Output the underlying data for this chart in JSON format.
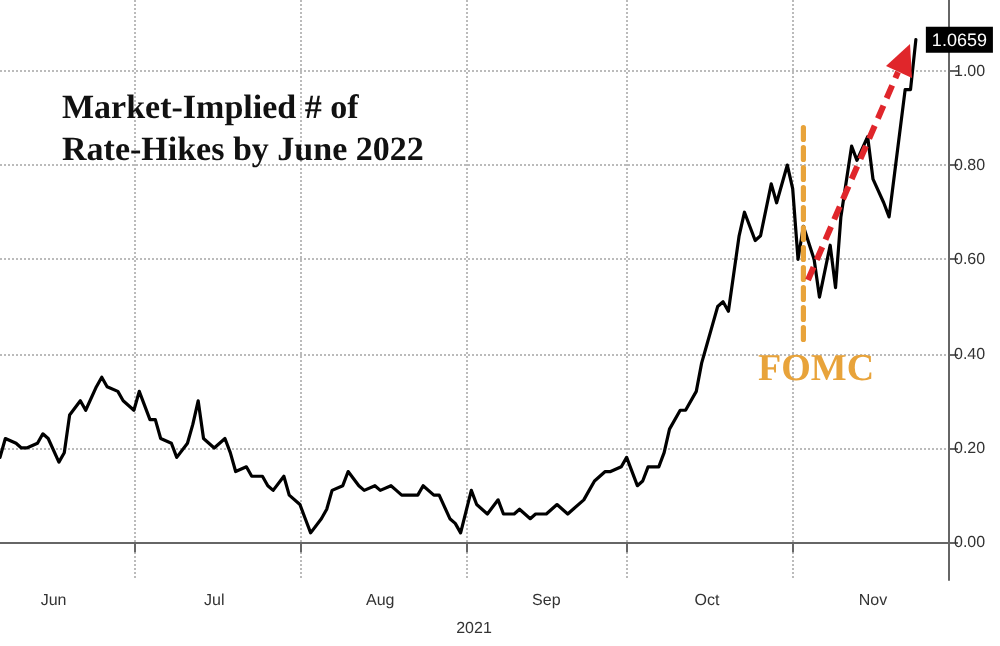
{
  "chart_data": {
    "type": "line",
    "title": "Market-Implied # of Rate-Hikes by June 2022",
    "xlabel": "2021",
    "annotations": [
      "FOMC"
    ],
    "xlim": [
      "2021-06-06",
      "2021-11-30"
    ],
    "xticks": [
      {
        "value": "2021-06-16",
        "label": "Jun"
      },
      {
        "value": "2021-07-01",
        "label": null
      },
      {
        "value": "2021-07-16",
        "label": "Jul"
      },
      {
        "value": "2021-08-01",
        "label": null
      },
      {
        "value": "2021-08-16",
        "label": "Aug"
      },
      {
        "value": "2021-09-01",
        "label": null
      },
      {
        "value": "2021-09-16",
        "label": "Sep"
      },
      {
        "value": "2021-10-01",
        "label": null
      },
      {
        "value": "2021-10-16",
        "label": "Oct"
      },
      {
        "value": "2021-11-01",
        "label": null
      },
      {
        "value": "2021-11-16",
        "label": "Nov"
      }
    ],
    "ylim": [
      -0.08,
      1.15
    ],
    "yticks": [
      {
        "value": 0,
        "label": "0.00"
      },
      {
        "value": 0.2,
        "label": "0.20"
      },
      {
        "value": 0.4,
        "label": "0.40"
      },
      {
        "value": 0.6,
        "label": "0.60"
      },
      {
        "value": 0.8,
        "label": "0.80"
      },
      {
        "value": 1,
        "label": "1.00"
      }
    ],
    "grid": true,
    "series": [
      {
        "color": "#000000",
        "x": [
          "2021-06-06",
          "2021-06-07",
          "2021-06-09",
          "2021-06-10",
          "2021-06-11",
          "2021-06-13",
          "2021-06-14",
          "2021-06-15",
          "2021-06-17",
          "2021-06-18",
          "2021-06-19",
          "2021-06-21",
          "2021-06-22",
          "2021-06-24",
          "2021-06-25",
          "2021-06-26",
          "2021-06-28",
          "2021-06-29",
          "2021-07-01",
          "2021-07-02",
          "2021-07-04",
          "2021-07-05",
          "2021-07-06",
          "2021-07-08",
          "2021-07-09",
          "2021-07-11",
          "2021-07-12",
          "2021-07-13",
          "2021-07-14",
          "2021-07-16",
          "2021-07-18",
          "2021-07-19",
          "2021-07-20",
          "2021-07-22",
          "2021-07-23",
          "2021-07-25",
          "2021-07-26",
          "2021-07-27",
          "2021-07-29",
          "2021-07-30",
          "2021-08-01",
          "2021-08-02",
          "2021-08-03",
          "2021-08-05",
          "2021-08-06",
          "2021-08-07",
          "2021-08-09",
          "2021-08-10",
          "2021-08-12",
          "2021-08-13",
          "2021-08-15",
          "2021-08-16",
          "2021-08-18",
          "2021-08-19",
          "2021-08-20",
          "2021-08-23",
          "2021-08-24",
          "2021-08-26",
          "2021-08-27",
          "2021-08-29",
          "2021-08-30",
          "2021-08-31",
          "2021-09-02",
          "2021-09-03",
          "2021-09-05",
          "2021-09-07",
          "2021-09-08",
          "2021-09-10",
          "2021-09-11",
          "2021-09-13",
          "2021-09-14",
          "2021-09-16",
          "2021-09-17",
          "2021-09-18",
          "2021-09-20",
          "2021-09-21",
          "2021-09-23",
          "2021-09-24",
          "2021-09-25",
          "2021-09-27",
          "2021-09-28",
          "2021-09-30",
          "2021-10-01",
          "2021-10-03",
          "2021-10-04",
          "2021-10-05",
          "2021-10-07",
          "2021-10-08",
          "2021-10-09",
          "2021-10-11",
          "2021-10-12",
          "2021-10-14",
          "2021-10-15",
          "2021-10-16",
          "2021-10-17",
          "2021-10-18",
          "2021-10-19",
          "2021-10-20",
          "2021-10-22",
          "2021-10-23",
          "2021-10-25",
          "2021-10-26",
          "2021-10-28",
          "2021-10-29",
          "2021-10-31",
          "2021-11-01",
          "2021-11-02",
          "2021-11-03",
          "2021-11-05",
          "2021-11-06",
          "2021-11-08",
          "2021-11-09",
          "2021-11-10",
          "2021-11-12",
          "2021-11-13",
          "2021-11-15",
          "2021-11-16",
          "2021-11-18",
          "2021-11-19",
          "2021-11-20",
          "2021-11-22",
          "2021-11-23",
          "2021-11-24"
        ],
        "values": [
          0.18,
          0.22,
          0.21,
          0.2,
          0.2,
          0.21,
          0.23,
          0.22,
          0.17,
          0.19,
          0.27,
          0.3,
          0.28,
          0.33,
          0.35,
          0.33,
          0.32,
          0.3,
          0.28,
          0.32,
          0.26,
          0.26,
          0.22,
          0.21,
          0.18,
          0.21,
          0.25,
          0.3,
          0.22,
          0.2,
          0.22,
          0.19,
          0.15,
          0.16,
          0.14,
          0.14,
          0.12,
          0.11,
          0.14,
          0.1,
          0.08,
          0.05,
          0.02,
          0.05,
          0.07,
          0.11,
          0.12,
          0.15,
          0.12,
          0.11,
          0.12,
          0.11,
          0.12,
          0.11,
          0.1,
          0.1,
          0.12,
          0.1,
          0.1,
          0.05,
          0.04,
          0.02,
          0.11,
          0.08,
          0.06,
          0.09,
          0.06,
          0.06,
          0.07,
          0.05,
          0.06,
          0.06,
          0.07,
          0.08,
          0.06,
          0.07,
          0.09,
          0.11,
          0.13,
          0.15,
          0.15,
          0.16,
          0.18,
          0.12,
          0.13,
          0.16,
          0.16,
          0.19,
          0.24,
          0.28,
          0.28,
          0.32,
          0.38,
          0.42,
          0.46,
          0.5,
          0.51,
          0.49,
          0.65,
          0.7,
          0.64,
          0.65,
          0.76,
          0.72,
          0.8,
          0.75,
          0.6,
          0.67,
          0.6,
          0.52,
          0.63,
          0.54,
          0.69,
          0.84,
          0.81,
          0.86,
          0.77,
          0.72,
          0.69,
          0.78,
          0.96,
          0.96,
          1.0659
        ],
        "value_labels": [
          null,
          null,
          null,
          null,
          null,
          null,
          null,
          null,
          null,
          null,
          null,
          null,
          null,
          null,
          null,
          null,
          null,
          null,
          null,
          null,
          null,
          null,
          null,
          null,
          null,
          null,
          null,
          null,
          null,
          null,
          null,
          null,
          null,
          null,
          null,
          null,
          null,
          null,
          null,
          null,
          null,
          null,
          null,
          null,
          null,
          null,
          null,
          null,
          null,
          null,
          null,
          null,
          null,
          null,
          null,
          null,
          null,
          null,
          null,
          null,
          null,
          null,
          null,
          null,
          null,
          null,
          null,
          null,
          null,
          null,
          null,
          null,
          null,
          null,
          null,
          null,
          null,
          null,
          null,
          null,
          null,
          null,
          null,
          null,
          null,
          null,
          null,
          null,
          null,
          null,
          null,
          null,
          null,
          null,
          null,
          null,
          null,
          null,
          null,
          null,
          null,
          null,
          null,
          null,
          null,
          null,
          null,
          null,
          null,
          null,
          null,
          null,
          null,
          null,
          null,
          null,
          null,
          null,
          null,
          null,
          null,
          null,
          "1.0659"
        ]
      },
      {
        "type": "line",
        "color": "#e8a33a",
        "line_style": "dashed",
        "x": [
          "2021-11-03",
          "2021-11-03"
        ],
        "values": [
          0.43,
          0.88
        ]
      }
    ]
  }
}
